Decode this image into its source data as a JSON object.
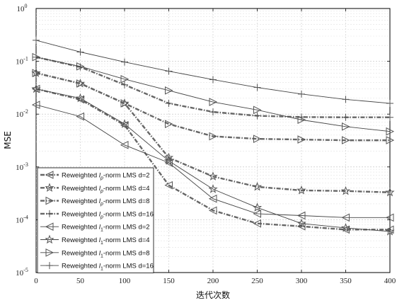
{
  "chart_data": {
    "type": "line",
    "title": "",
    "xlabel": "迭代次数",
    "ylabel": "MSE",
    "xlim": [
      0,
      400
    ],
    "ylim": [
      1e-05,
      1
    ],
    "yscale": "log",
    "grid": true,
    "legend_position": "bottom-left",
    "x_ticks": [
      "0",
      "50",
      "100",
      "150",
      "200",
      "250",
      "300",
      "350",
      "400"
    ],
    "y_ticks": [
      {
        "base": "10",
        "exp": "0"
      },
      {
        "base": "10",
        "exp": "-1"
      },
      {
        "base": "10",
        "exp": "-2"
      },
      {
        "base": "10",
        "exp": "-3"
      },
      {
        "base": "10",
        "exp": "-4"
      },
      {
        "base": "10",
        "exp": "-5"
      }
    ],
    "x": [
      0,
      50,
      100,
      150,
      200,
      250,
      300,
      350,
      400
    ],
    "series": [
      {
        "name_prefix": "Reweighted ",
        "name_sym": "l",
        "name_sub": "p",
        "name_suffix": "-norm LMS d=2",
        "marker": "left-triangle",
        "dashed": true,
        "values": [
          0.03,
          0.019,
          0.0062,
          0.00045,
          0.00015,
          8.5e-05,
          7.5e-05,
          6.5e-05,
          6.5e-05
        ]
      },
      {
        "name_prefix": "Reweighted ",
        "name_sym": "l",
        "name_sub": "p",
        "name_suffix": "-norm LMS d=4",
        "marker": "star",
        "dashed": true,
        "values": [
          0.06,
          0.038,
          0.016,
          0.0015,
          0.00066,
          0.00042,
          0.00036,
          0.00035,
          0.00033
        ]
      },
      {
        "name_prefix": "Reweighted ",
        "name_sym": "l",
        "name_sub": "p",
        "name_suffix": "-norm LMS d=8",
        "marker": "right-triangle",
        "dashed": true,
        "values": [
          0.06,
          0.038,
          0.016,
          0.0065,
          0.0038,
          0.0034,
          0.0033,
          0.0032,
          0.0032
        ]
      },
      {
        "name_prefix": "Reweighted ",
        "name_sym": "l",
        "name_sub": "p",
        "name_suffix": "-norm LMS d=16",
        "marker": "plus",
        "dashed": true,
        "values": [
          0.12,
          0.078,
          0.036,
          0.016,
          0.011,
          0.0093,
          0.0088,
          0.0087,
          0.0087
        ]
      },
      {
        "name_prefix": "Reweighted ",
        "name_sym": "l",
        "name_sub": "1",
        "name_suffix": "-norm LMS d=2",
        "marker": "left-triangle",
        "dashed": false,
        "values": [
          0.015,
          0.009,
          0.0026,
          0.0012,
          0.00025,
          0.00013,
          0.00012,
          0.00011,
          0.00011
        ]
      },
      {
        "name_prefix": "Reweighted ",
        "name_sym": "l",
        "name_sub": "1",
        "name_suffix": "-norm LMS d=4",
        "marker": "star",
        "dashed": false,
        "values": [
          0.03,
          0.02,
          0.0065,
          0.0013,
          0.00038,
          0.00017,
          8.5e-05,
          7e-05,
          6e-05
        ]
      },
      {
        "name_prefix": "Reweighted ",
        "name_sym": "l",
        "name_sub": "1",
        "name_suffix": "-norm LMS d=8",
        "marker": "right-triangle",
        "dashed": false,
        "values": [
          0.12,
          0.08,
          0.046,
          0.028,
          0.017,
          0.012,
          0.0078,
          0.0058,
          0.0047
        ]
      },
      {
        "name_prefix": "Reweighted ",
        "name_sym": "l",
        "name_sub": "1",
        "name_suffix": "-norm LMS d=16",
        "marker": "plus",
        "dashed": false,
        "values": [
          0.25,
          0.15,
          0.097,
          0.065,
          0.045,
          0.032,
          0.024,
          0.019,
          0.016
        ]
      }
    ]
  }
}
